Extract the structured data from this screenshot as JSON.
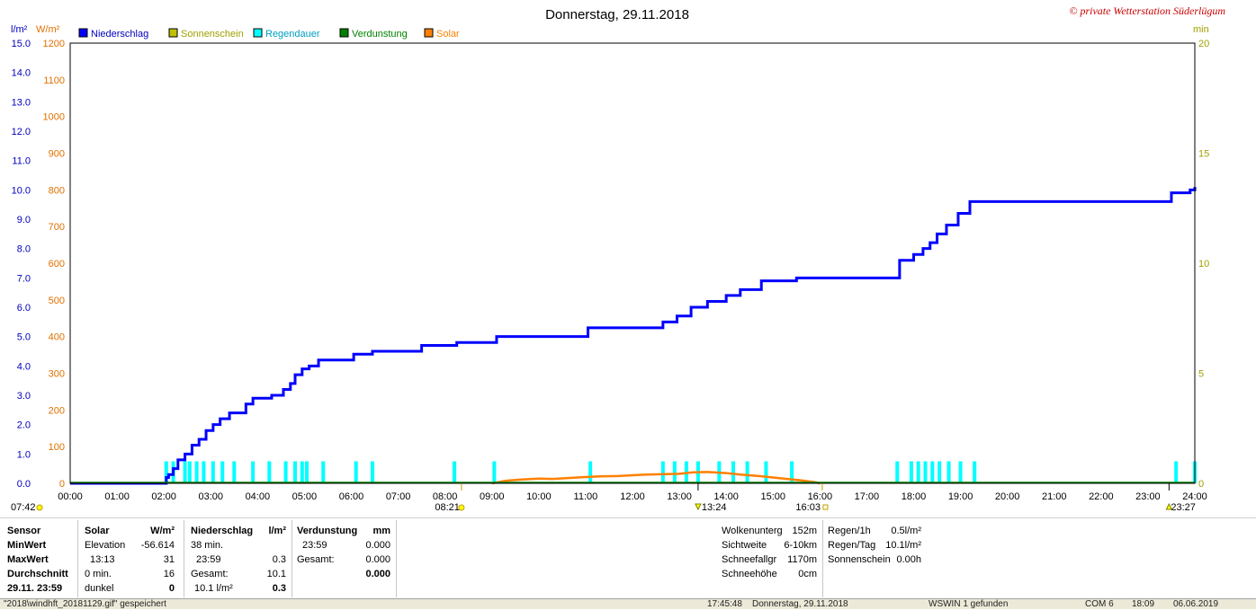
{
  "chart_data": {
    "type": "line",
    "title": "Donnerstag, 29.11.2018",
    "watermark": "© private Wetterstation Süderlügum",
    "left_unit_1": "l/m²",
    "left_unit_2": "W/m²",
    "right_unit": "min",
    "legend": [
      {
        "name": "Niederschlag",
        "color": "#0000ff"
      },
      {
        "name": "Sonnenschein",
        "color": "#c0c000"
      },
      {
        "name": "Regendauer",
        "color": "#00ffff"
      },
      {
        "name": "Verdunstung",
        "color": "#008000"
      },
      {
        "name": "Solar",
        "color": "#ff8000"
      }
    ],
    "x_ticks": [
      "00:00",
      "01:00",
      "02:00",
      "03:00",
      "04:00",
      "05:00",
      "06:00",
      "07:00",
      "08:00",
      "09:00",
      "10:00",
      "11:00",
      "12:00",
      "13:00",
      "14:00",
      "15:00",
      "16:00",
      "17:00",
      "18:00",
      "19:00",
      "20:00",
      "21:00",
      "22:00",
      "23:00",
      "24:00"
    ],
    "xlim": [
      0,
      24
    ],
    "y_ticks_rain": [
      "0.0",
      "1.0",
      "2.0",
      "3.0",
      "4.0",
      "5.0",
      "6.0",
      "7.0",
      "8.0",
      "9.0",
      "10.0",
      "11.0",
      "12.0",
      "13.0",
      "14.0",
      "15.0"
    ],
    "ylim_rain": [
      0,
      15
    ],
    "y_ticks_solar": [
      "0",
      "100",
      "200",
      "300",
      "400",
      "500",
      "600",
      "700",
      "800",
      "900",
      "1000",
      "1100",
      "1200"
    ],
    "ylim_solar": [
      0,
      1200
    ],
    "y_ticks_min": [
      "0",
      "5",
      "10",
      "15",
      "20"
    ],
    "ylim_min": [
      0,
      20
    ],
    "markers": {
      "sunrise": "08:21",
      "sunset": "16:03",
      "solar_noon": "13:24",
      "left_time": "07:42",
      "right_time": "23:27"
    },
    "series": [
      {
        "name": "Niederschlag",
        "axis": "rain",
        "x": [
          0,
          2.0,
          2.05,
          2.1,
          2.2,
          2.3,
          2.45,
          2.6,
          2.75,
          2.9,
          3.05,
          3.2,
          3.4,
          3.75,
          3.9,
          4.3,
          4.55,
          4.7,
          4.8,
          4.95,
          5.1,
          5.3,
          6.05,
          6.45,
          7.5,
          8.25,
          9.1,
          10.0,
          11.05,
          11.5,
          12.65,
          12.95,
          13.25,
          13.6,
          14.0,
          14.3,
          14.75,
          15.5,
          16.0,
          17.0,
          17.7,
          18.0,
          18.2,
          18.35,
          18.5,
          18.7,
          18.95,
          19.2,
          20.0,
          21.0,
          22.0,
          23.0,
          23.5,
          23.9,
          24.0
        ],
        "y": [
          0,
          0,
          0.2,
          0.3,
          0.5,
          0.8,
          1.0,
          1.3,
          1.5,
          1.8,
          2.0,
          2.2,
          2.4,
          2.7,
          2.9,
          3.0,
          3.2,
          3.4,
          3.7,
          3.9,
          4.0,
          4.2,
          4.4,
          4.5,
          4.7,
          4.8,
          5.0,
          5.0,
          5.3,
          5.3,
          5.5,
          5.7,
          6.0,
          6.2,
          6.4,
          6.6,
          6.9,
          7.0,
          7.0,
          7.0,
          7.6,
          7.8,
          8.0,
          8.2,
          8.5,
          8.8,
          9.2,
          9.6,
          9.6,
          9.6,
          9.6,
          9.6,
          9.9,
          10.0,
          10.1
        ]
      },
      {
        "name": "Solar",
        "axis": "solar",
        "x": [
          9.0,
          9.3,
          9.6,
          10.0,
          10.3,
          10.7,
          11.0,
          11.3,
          11.7,
          12.0,
          12.3,
          12.7,
          13.0,
          13.3,
          13.6,
          14.0,
          14.3,
          14.7,
          15.0,
          15.3,
          15.6,
          15.9,
          16.0
        ],
        "y": [
          0,
          7,
          10,
          13,
          12,
          15,
          17,
          19,
          20,
          22,
          24,
          25,
          26,
          30,
          31,
          28,
          24,
          20,
          16,
          12,
          8,
          3,
          0
        ]
      },
      {
        "name": "Regendauer",
        "axis": "min",
        "type": "bar",
        "x": [
          2.05,
          2.2,
          2.45,
          2.55,
          2.7,
          2.85,
          3.05,
          3.25,
          3.5,
          3.9,
          4.25,
          4.6,
          4.8,
          4.95,
          5.05,
          5.4,
          6.1,
          6.45,
          8.2,
          9.05,
          11.1,
          12.65,
          12.9,
          13.15,
          13.4,
          13.85,
          14.15,
          14.45,
          14.85,
          15.4,
          17.65,
          17.95,
          18.1,
          18.25,
          18.4,
          18.55,
          18.75,
          19.0,
          19.3,
          23.6,
          24.0
        ],
        "y": [
          1,
          1,
          1,
          1,
          1,
          1,
          1,
          1,
          1,
          1,
          1,
          1,
          1,
          1,
          1,
          1,
          1,
          1,
          1,
          1,
          1,
          1,
          1,
          1,
          1,
          1,
          1,
          1,
          1,
          1,
          1,
          1,
          1,
          1,
          1,
          1,
          1,
          1,
          1,
          1,
          1
        ]
      },
      {
        "name": "Verdunstung",
        "axis": "rain",
        "x": [
          0,
          24
        ],
        "y": [
          0,
          0
        ]
      }
    ]
  },
  "stats": {
    "col1": [
      "Sensor",
      "MinWert",
      "MaxWert",
      "Durchschnitt",
      "29.11.  23:59"
    ],
    "solar": {
      "header": "Solar",
      "unit": "W/m²",
      "rows": [
        [
          "Elevation",
          "-56.614"
        ],
        [
          "13:13",
          "31"
        ],
        [
          "0 min.",
          "16"
        ],
        [
          "dunkel",
          "0"
        ]
      ]
    },
    "rain": {
      "header": "Niederschlag",
      "unit": "l/m²",
      "rows": [
        [
          "38 min.",
          ""
        ],
        [
          "23:59",
          "0.3"
        ],
        [
          "Gesamt:",
          "10.1"
        ],
        [
          "10.1 l/m²",
          "0.3"
        ]
      ]
    },
    "evap": {
      "header": "Verdunstung",
      "unit": "mm",
      "rows": [
        [
          "",
          ""
        ],
        [
          "23:59",
          "0.000"
        ],
        [
          "Gesamt:",
          "0.000"
        ],
        [
          "",
          "0.000"
        ]
      ]
    },
    "extra1": [
      [
        "Wolkenunterg",
        "152m"
      ],
      [
        "Sichtweite",
        "6-10km"
      ],
      [
        "Schneefallgr",
        "1170m"
      ],
      [
        "Schneehöhe",
        "0cm"
      ]
    ],
    "extra2": [
      [
        "Regen/1h",
        "0.5l/m²"
      ],
      [
        "Regen/Tag",
        "10.1l/m²"
      ],
      [
        "Sonnenschein",
        "0.00h"
      ]
    ]
  },
  "status_bar": {
    "file": "\"2018\\windhft_20181129.gif\" gespeichert",
    "time": "17:45:48",
    "date": "Donnerstag, 29.11.2018",
    "found": "WSWIN 1 gefunden",
    "port": "COM 6",
    "clock": "18:09",
    "today": "06.06.2019"
  }
}
